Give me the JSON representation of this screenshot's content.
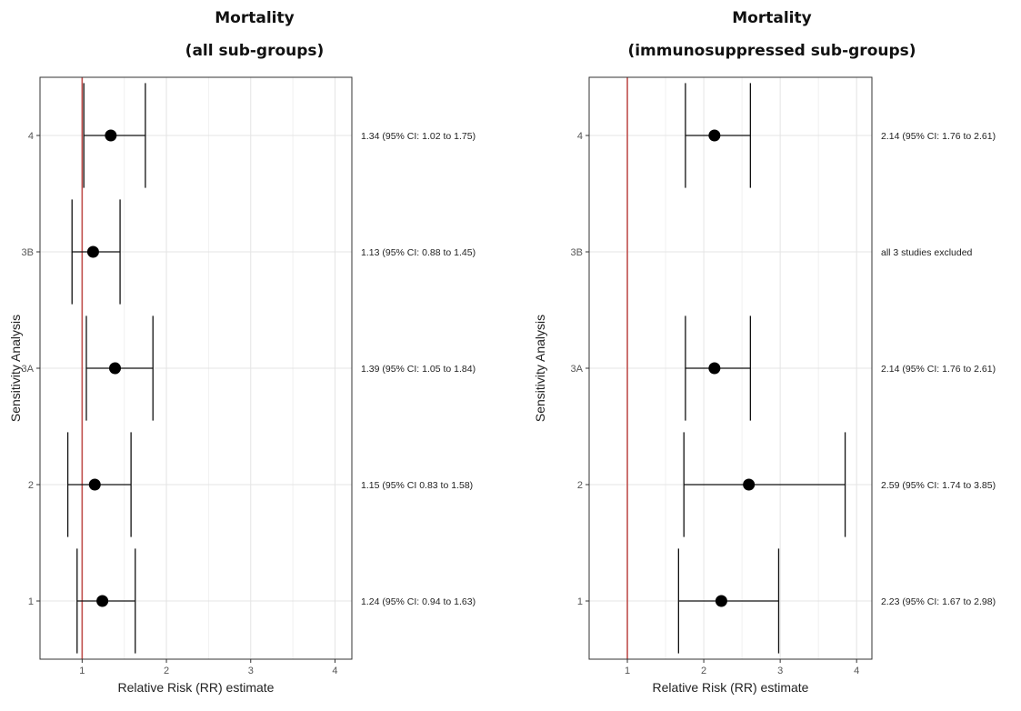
{
  "chart_data": [
    {
      "type": "forest",
      "title": "Mortality",
      "subtitle": "(all sub-groups)",
      "xlabel": "Relative Risk (RR) estimate",
      "ylabel": "Sensitivity Analysis",
      "xlim": [
        0.5,
        4.2
      ],
      "xticks": [
        "1",
        "2",
        "3",
        "4"
      ],
      "reference_line": 1,
      "reference_color": "#c0504d",
      "categories": [
        "1",
        "2",
        "3A",
        "3B",
        "4"
      ],
      "estimates": [
        {
          "category": "1",
          "rr": 1.24,
          "lo": 0.94,
          "hi": 1.63,
          "label": "1.24 (95% CI: 0.94 to 1.63)"
        },
        {
          "category": "2",
          "rr": 1.15,
          "lo": 0.83,
          "hi": 1.58,
          "label": "1.15 (95% CI 0.83 to 1.58)"
        },
        {
          "category": "3A",
          "rr": 1.39,
          "lo": 1.05,
          "hi": 1.84,
          "label": "1.39 (95% CI: 1.05 to 1.84)"
        },
        {
          "category": "3B",
          "rr": 1.13,
          "lo": 0.88,
          "hi": 1.45,
          "label": "1.13 (95% CI: 0.88 to 1.45)"
        },
        {
          "category": "4",
          "rr": 1.34,
          "lo": 1.02,
          "hi": 1.75,
          "label": "1.34 (95% CI: 1.02 to 1.75)"
        }
      ]
    },
    {
      "type": "forest",
      "title": "Mortality",
      "subtitle": "(immunosuppressed sub-groups)",
      "xlabel": "Relative Risk (RR) estimate",
      "ylabel": "Sensitivity Analysis",
      "xlim": [
        0.5,
        4.2
      ],
      "xticks": [
        "1",
        "2",
        "3",
        "4"
      ],
      "reference_line": 1,
      "reference_color": "#c0504d",
      "categories": [
        "1",
        "2",
        "3A",
        "3B",
        "4"
      ],
      "estimates": [
        {
          "category": "1",
          "rr": 2.23,
          "lo": 1.67,
          "hi": 2.98,
          "label": "2.23 (95% CI: 1.67 to 2.98)"
        },
        {
          "category": "2",
          "rr": 2.59,
          "lo": 1.74,
          "hi": 3.85,
          "label": "2.59 (95% CI: 1.74 to 3.85)"
        },
        {
          "category": "3A",
          "rr": 2.14,
          "lo": 1.76,
          "hi": 2.61,
          "label": "2.14 (95% CI: 1.76 to 2.61)"
        },
        {
          "category": "3B",
          "rr": null,
          "lo": null,
          "hi": null,
          "label": "all 3 studies excluded"
        },
        {
          "category": "4",
          "rr": 2.14,
          "lo": 1.76,
          "hi": 2.61,
          "label": "2.14 (95% CI: 1.76 to 2.61)"
        }
      ]
    }
  ]
}
